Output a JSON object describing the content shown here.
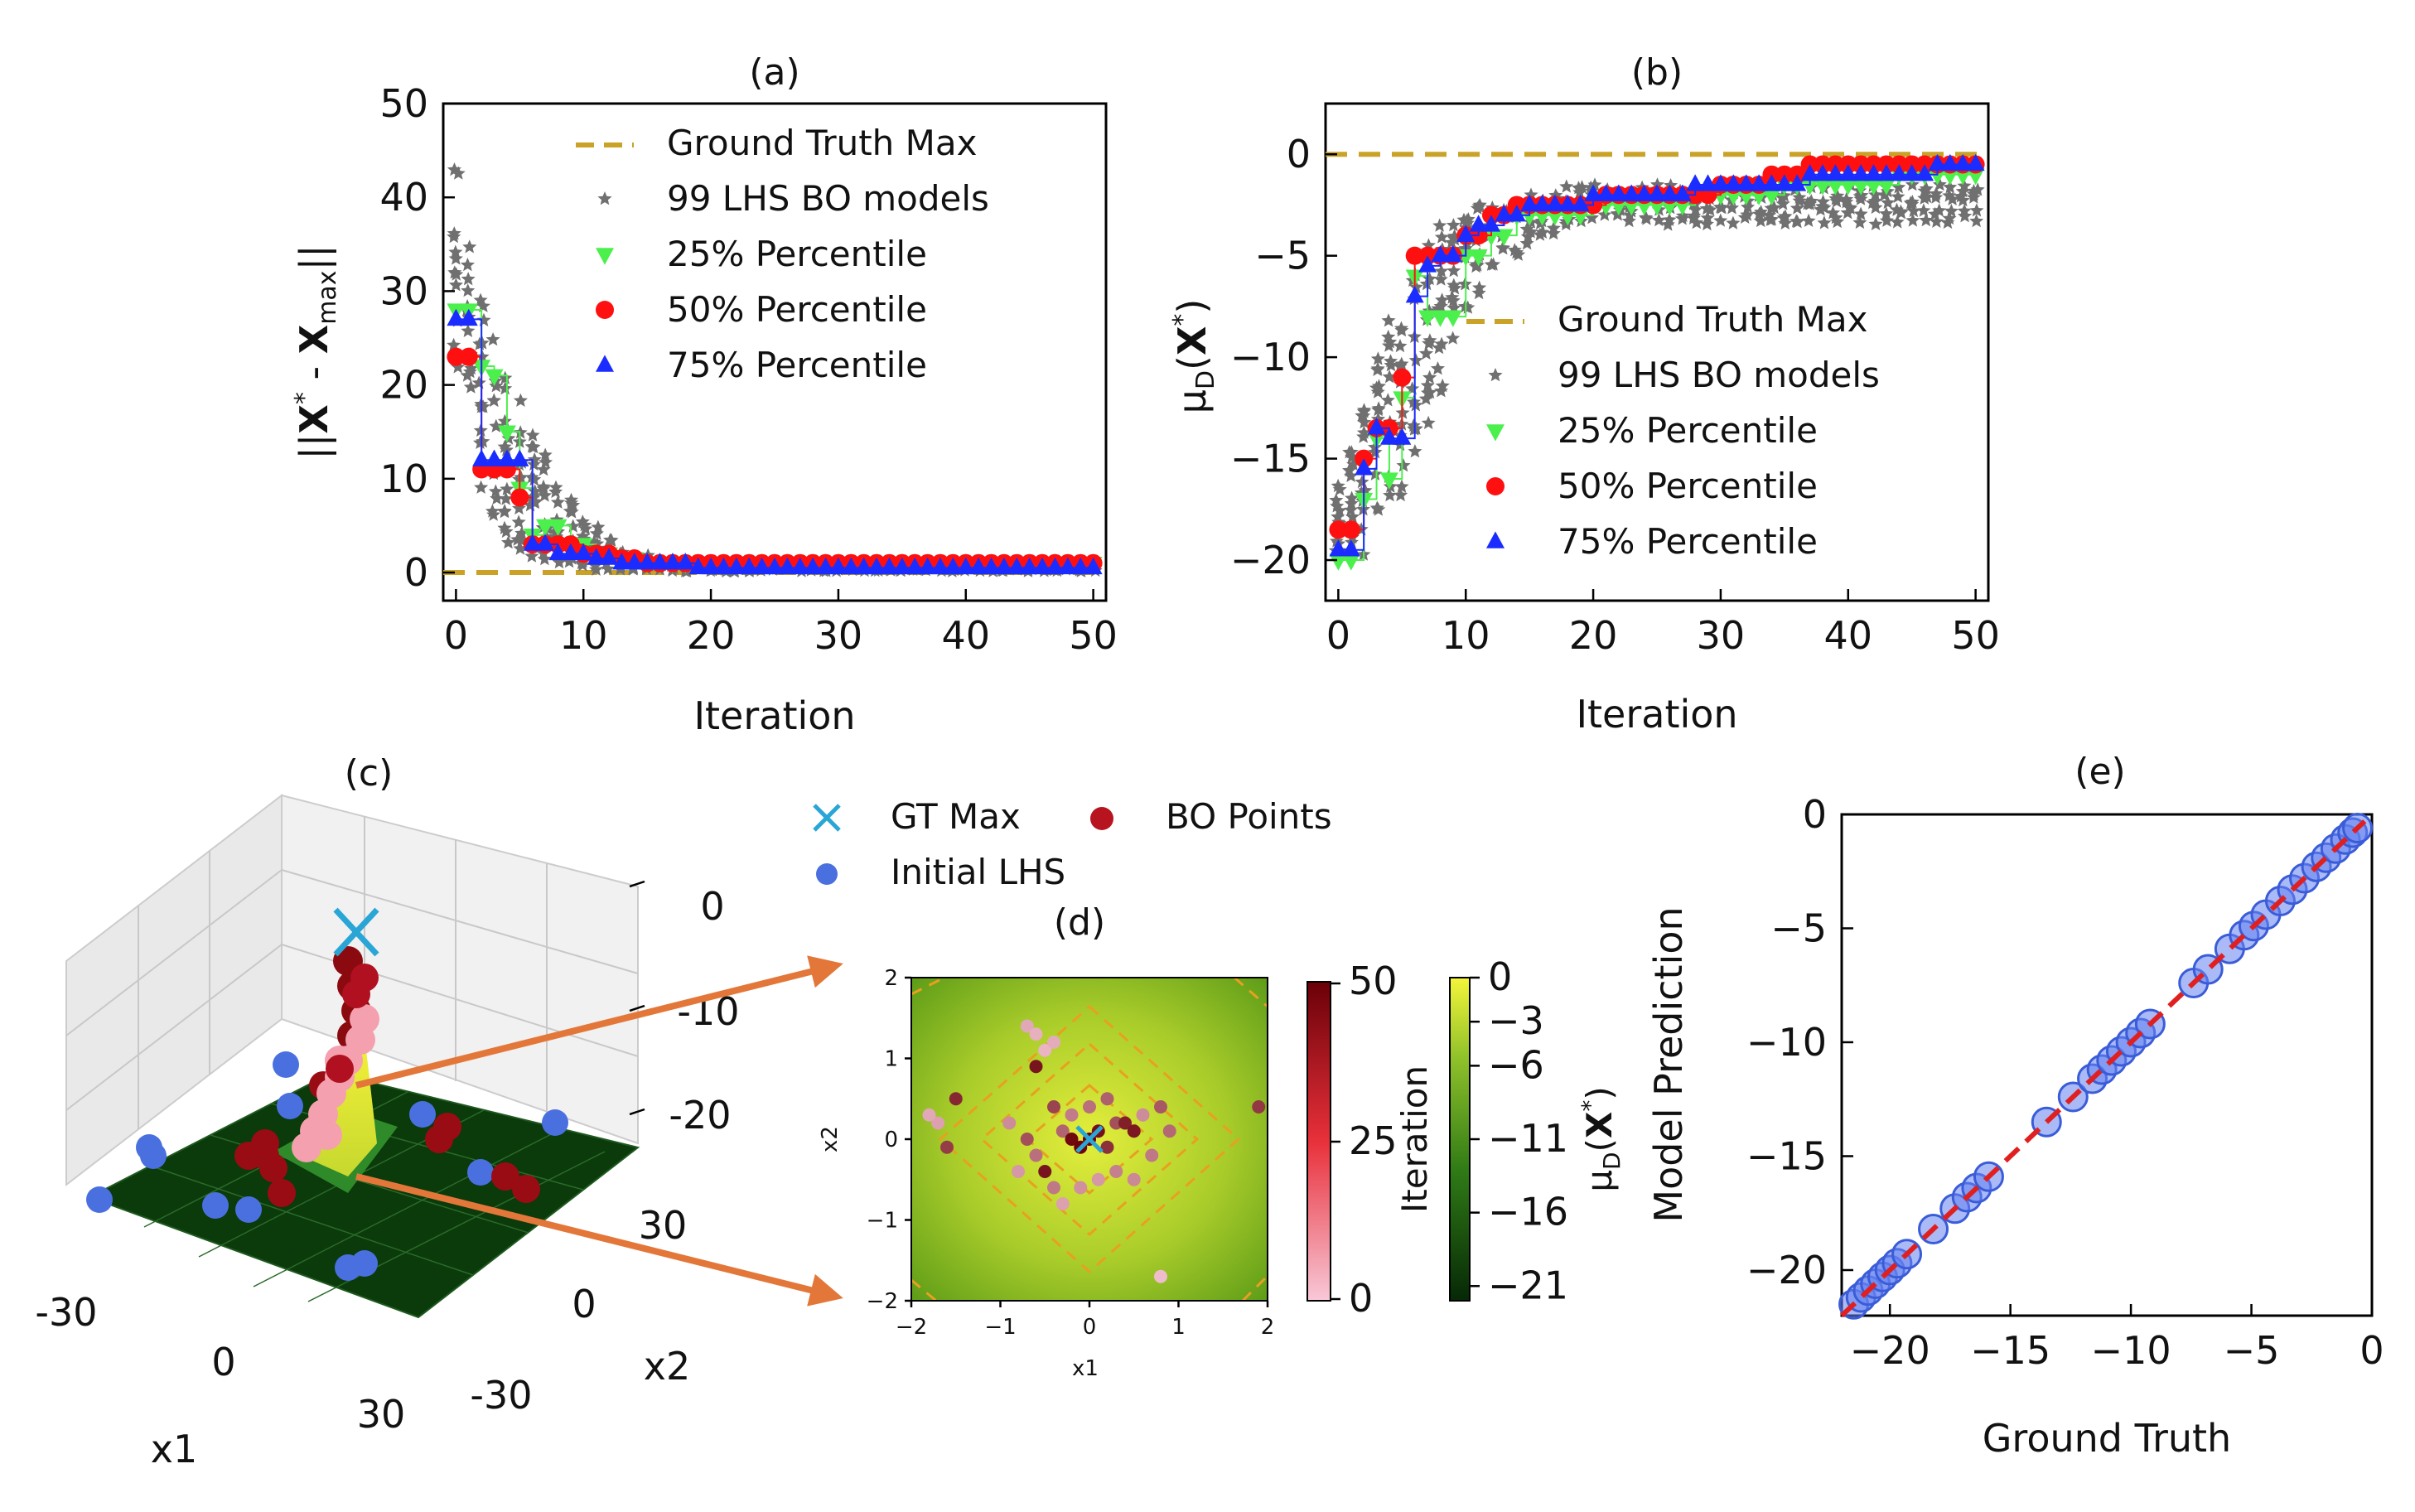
{
  "chart_data": [
    {
      "id": "a",
      "type": "scatter",
      "title": "(a)",
      "xlabel": "Iteration",
      "ylabel": "||X* - Xmax||",
      "xlim": [
        -1,
        51
      ],
      "ylim": [
        -3,
        50
      ],
      "xticks": [
        0,
        10,
        20,
        30,
        40,
        50
      ],
      "yticks": [
        0,
        10,
        20,
        30,
        40,
        50
      ],
      "legend_position": "top-right",
      "legend": [
        "Ground Truth Max",
        "99 LHS BO models",
        "25% Percentile",
        "50% Percentile",
        "75% Percentile"
      ],
      "ground_truth_max": 0,
      "x": [
        0,
        1,
        2,
        3,
        4,
        5,
        6,
        7,
        8,
        9,
        10,
        11,
        12,
        13,
        14,
        15,
        16,
        17,
        18,
        19,
        20,
        21,
        22,
        23,
        24,
        25,
        26,
        27,
        28,
        29,
        30,
        31,
        32,
        33,
        34,
        35,
        36,
        37,
        38,
        39,
        40,
        41,
        42,
        43,
        44,
        45,
        46,
        47,
        48,
        49,
        50
      ],
      "series": [
        {
          "name": "25% Percentile",
          "values": [
            28,
            28,
            22,
            21,
            15,
            9,
            4,
            5,
            5,
            3,
            3,
            2,
            2,
            1.5,
            1.5,
            1,
            1,
            1,
            1,
            1,
            1,
            1,
            1,
            1,
            1,
            1,
            1,
            1,
            1,
            1,
            1,
            1,
            1,
            1,
            1,
            1,
            1,
            1,
            1,
            1,
            1,
            1,
            1,
            1,
            1,
            1,
            1,
            1,
            1,
            1,
            1
          ]
        },
        {
          "name": "50% Percentile",
          "values": [
            23,
            23,
            11,
            11,
            11,
            8,
            3,
            3,
            3,
            3,
            2,
            2,
            2,
            1.5,
            1.5,
            1,
            1,
            1,
            1,
            1,
            1,
            1,
            1,
            1,
            1,
            1,
            1,
            1,
            1,
            1,
            1,
            1,
            1,
            1,
            1,
            1,
            1,
            1,
            1,
            1,
            1,
            1,
            1,
            1,
            1,
            1,
            1,
            1,
            1,
            1,
            1
          ]
        },
        {
          "name": "75% Percentile",
          "values": [
            27,
            27,
            12,
            12,
            12,
            12,
            3,
            3,
            2,
            2,
            2,
            1.5,
            1.5,
            1,
            1,
            1,
            1,
            1,
            1,
            0.5,
            0.5,
            0.5,
            0.5,
            0.5,
            0.5,
            0.5,
            0.5,
            0.5,
            0.5,
            0.5,
            0.5,
            0.5,
            0.5,
            0.5,
            0.5,
            0.5,
            0.5,
            0.5,
            0.5,
            0.5,
            0.5,
            0.5,
            0.5,
            0.5,
            0.5,
            0.5,
            0.5,
            0.5,
            0.5,
            0.5,
            0.5
          ]
        }
      ],
      "lhs_spread": [
        [
          20,
          44
        ],
        [
          18,
          40
        ],
        [
          8,
          30
        ],
        [
          6,
          27
        ],
        [
          3,
          24
        ],
        [
          2,
          20
        ],
        [
          1,
          15
        ],
        [
          1,
          13
        ],
        [
          0.5,
          10
        ],
        [
          0.5,
          8
        ],
        [
          0.5,
          6
        ],
        [
          0.3,
          5
        ],
        [
          0.3,
          4
        ],
        [
          0.3,
          3
        ],
        [
          0.2,
          2.5
        ],
        [
          0.2,
          2
        ],
        [
          0.2,
          1.5
        ],
        [
          0.2,
          1.5
        ],
        [
          0.1,
          1.2
        ],
        [
          0.1,
          1.2
        ],
        [
          0.1,
          1
        ]
      ]
    },
    {
      "id": "b",
      "type": "scatter",
      "title": "(b)",
      "xlabel": "Iteration",
      "ylabel": "μD(X*)",
      "xlim": [
        -1,
        51
      ],
      "ylim": [
        -22,
        2.5
      ],
      "xticks": [
        0,
        10,
        20,
        30,
        40,
        50
      ],
      "yticks": [
        0,
        -5,
        -10,
        -15,
        -20
      ],
      "legend_position": "lower-right",
      "legend": [
        "Ground Truth Max",
        "99 LHS BO models",
        "25% Percentile",
        "50% Percentile",
        "75% Percentile"
      ],
      "ground_truth_max": 0,
      "x": [
        0,
        1,
        2,
        3,
        4,
        5,
        6,
        7,
        8,
        9,
        10,
        11,
        12,
        13,
        14,
        15,
        16,
        17,
        18,
        19,
        20,
        21,
        22,
        23,
        24,
        25,
        26,
        27,
        28,
        29,
        30,
        31,
        32,
        33,
        34,
        35,
        36,
        37,
        38,
        39,
        40,
        41,
        42,
        43,
        44,
        45,
        46,
        47,
        48,
        49,
        50
      ],
      "series": [
        {
          "name": "25% Percentile",
          "values": [
            -20,
            -20,
            -17,
            -14,
            -16,
            -12,
            -6,
            -8,
            -8,
            -8,
            -5,
            -5,
            -4,
            -4,
            -3,
            -3,
            -3,
            -3,
            -3,
            -3,
            -2.5,
            -2.5,
            -2.5,
            -2.5,
            -2.5,
            -2.5,
            -2.5,
            -2.5,
            -2,
            -2,
            -2,
            -2,
            -2,
            -2,
            -2,
            -1.5,
            -1.5,
            -1.5,
            -1.5,
            -1.5,
            -1.5,
            -1.5,
            -1.5,
            -1.5,
            -1,
            -1,
            -1,
            -1,
            -1,
            -1,
            -1
          ]
        },
        {
          "name": "50% Percentile",
          "values": [
            -18.5,
            -18.5,
            -15,
            -13.5,
            -13.5,
            -11,
            -5,
            -5,
            -5,
            -5,
            -4,
            -4,
            -3,
            -3,
            -2.5,
            -2.5,
            -2.5,
            -2.5,
            -2.5,
            -2.5,
            -2.5,
            -2,
            -2,
            -2,
            -2,
            -2,
            -2,
            -2,
            -2,
            -2,
            -1.5,
            -1.5,
            -1.5,
            -1.5,
            -1,
            -1,
            -1,
            -0.5,
            -0.5,
            -0.5,
            -0.5,
            -0.5,
            -0.5,
            -0.5,
            -0.5,
            -0.5,
            -0.5,
            -0.5,
            -0.5,
            -0.5,
            -0.5
          ]
        },
        {
          "name": "75% Percentile",
          "values": [
            -19.5,
            -19.5,
            -15.5,
            -13.5,
            -14,
            -14,
            -7,
            -5.5,
            -5,
            -5,
            -4,
            -3.5,
            -3.5,
            -3,
            -3,
            -2.5,
            -2.5,
            -2.5,
            -2.5,
            -2.5,
            -2,
            -2,
            -2,
            -2,
            -2,
            -2,
            -2,
            -2,
            -1.5,
            -1.5,
            -1.5,
            -1.5,
            -1.5,
            -1.5,
            -1.5,
            -1.5,
            -1.5,
            -1,
            -1,
            -1,
            -1,
            -1,
            -1,
            -1,
            -1,
            -1,
            -1,
            -0.5,
            -0.5,
            -0.5,
            -0.5
          ]
        }
      ],
      "lhs_spread": [
        [
          -20,
          -16
        ],
        [
          -20.5,
          -14
        ],
        [
          -20,
          -12
        ],
        [
          -19,
          -10
        ],
        [
          -18,
          -8
        ],
        [
          -17,
          -7
        ],
        [
          -17,
          -5
        ],
        [
          -14,
          -4
        ],
        [
          -12,
          -3.5
        ],
        [
          -10,
          -3
        ],
        [
          -8,
          -3
        ],
        [
          -7,
          -2.5
        ],
        [
          -6,
          -2.5
        ],
        [
          -5,
          -2.5
        ],
        [
          -5,
          -2
        ],
        [
          -4.5,
          -2
        ],
        [
          -4,
          -2
        ],
        [
          -4,
          -2
        ],
        [
          -3.5,
          -1.5
        ],
        [
          -3.5,
          -1.5
        ],
        [
          -3.5,
          -1.5
        ]
      ]
    },
    {
      "id": "c",
      "type": "scatter",
      "title": "(c)",
      "xlabel": "x1",
      "ylabel": "x2",
      "xticks": [
        -30,
        0,
        30
      ],
      "yticks": [
        30,
        0,
        -30
      ],
      "zticks": [
        0,
        -10,
        -20
      ],
      "legend": [
        "GT Max",
        "BO Points",
        "Initial LHS"
      ]
    },
    {
      "id": "d",
      "type": "heatmap",
      "title": "(d)",
      "xlabel": "x1",
      "ylabel": "x2",
      "xlim": [
        -2,
        2
      ],
      "ylim": [
        -2,
        2
      ],
      "xticks": [
        -2,
        -1,
        0,
        1,
        2
      ],
      "yticks": [
        2,
        1,
        0,
        -1,
        -2
      ],
      "gt_max": [
        0,
        0
      ],
      "colorbar_iteration": {
        "label": "Iteration",
        "ticks": [
          50,
          25,
          0
        ]
      },
      "colorbar_mu": {
        "label": "μD(X*)",
        "ticks": [
          0,
          -3,
          -6,
          -11,
          -16,
          -21
        ]
      },
      "bo_points": [
        [
          -0.7,
          1.4,
          8
        ],
        [
          -0.6,
          1.3,
          6
        ],
        [
          -0.5,
          1.1,
          5
        ],
        [
          -0.4,
          1.2,
          7
        ],
        [
          -0.6,
          0.9,
          45
        ],
        [
          -1.5,
          0.5,
          40
        ],
        [
          -1.7,
          0.2,
          10
        ],
        [
          -1.8,
          0.3,
          8
        ],
        [
          -1.6,
          -0.1,
          35
        ],
        [
          -0.9,
          0.2,
          15
        ],
        [
          -0.7,
          0.0,
          30
        ],
        [
          -0.6,
          -0.2,
          22
        ],
        [
          -0.5,
          -0.4,
          45
        ],
        [
          -0.4,
          -0.6,
          20
        ],
        [
          -0.3,
          0.1,
          25
        ],
        [
          -0.2,
          0.0,
          48
        ],
        [
          -0.1,
          -0.1,
          49
        ],
        [
          0.0,
          0.0,
          50
        ],
        [
          0.1,
          0.1,
          46
        ],
        [
          0.2,
          -0.1,
          38
        ],
        [
          0.3,
          0.2,
          30
        ],
        [
          0.4,
          0.2,
          42
        ],
        [
          0.5,
          0.1,
          44
        ],
        [
          0.6,
          0.3,
          15
        ],
        [
          0.7,
          -0.2,
          20
        ],
        [
          0.8,
          0.4,
          28
        ],
        [
          0.3,
          -0.4,
          18
        ],
        [
          0.1,
          -0.5,
          12
        ],
        [
          -0.1,
          -0.6,
          14
        ],
        [
          -0.3,
          -0.8,
          10
        ],
        [
          0.2,
          0.5,
          26
        ],
        [
          -0.4,
          0.4,
          33
        ],
        [
          0.5,
          -0.5,
          16
        ],
        [
          0.9,
          0.1,
          24
        ],
        [
          1.9,
          0.4,
          36
        ],
        [
          0.8,
          -1.7,
          3
        ],
        [
          -0.8,
          -0.4,
          12
        ],
        [
          0.0,
          0.4,
          22
        ],
        [
          -0.2,
          0.3,
          19
        ]
      ]
    },
    {
      "id": "e",
      "type": "scatter",
      "title": "(e)",
      "xlabel": "Ground Truth",
      "ylabel": "Model Prediction",
      "xlim": [
        -22,
        0
      ],
      "ylim": [
        -22,
        0
      ],
      "xticks": [
        -20,
        -15,
        -10,
        -5,
        0
      ],
      "yticks": [
        0,
        -5,
        -10,
        -15,
        -20
      ],
      "x": [
        -21.5,
        -21.2,
        -20.9,
        -20.6,
        -20.3,
        -20.0,
        -19.7,
        -19.3,
        -18.2,
        -17.3,
        -16.8,
        -16.4,
        -15.9,
        -13.5,
        -12.4,
        -11.6,
        -11.2,
        -10.8,
        -10.4,
        -10.0,
        -9.6,
        -9.2,
        -7.4,
        -6.8,
        -5.9,
        -5.3,
        -4.9,
        -4.4,
        -3.8,
        -3.3,
        -2.8,
        -2.3,
        -1.9,
        -1.5,
        -1.1,
        -0.8,
        -0.6
      ],
      "y": [
        -21.5,
        -21.2,
        -20.9,
        -20.6,
        -20.3,
        -20.0,
        -19.7,
        -19.3,
        -18.2,
        -17.3,
        -16.8,
        -16.4,
        -15.9,
        -13.5,
        -12.4,
        -11.6,
        -11.2,
        -10.8,
        -10.4,
        -10.0,
        -9.6,
        -9.2,
        -7.4,
        -6.8,
        -5.9,
        -5.3,
        -4.9,
        -4.4,
        -3.8,
        -3.3,
        -2.8,
        -2.3,
        -1.9,
        -1.5,
        -1.1,
        -0.8,
        -0.6
      ]
    }
  ]
}
